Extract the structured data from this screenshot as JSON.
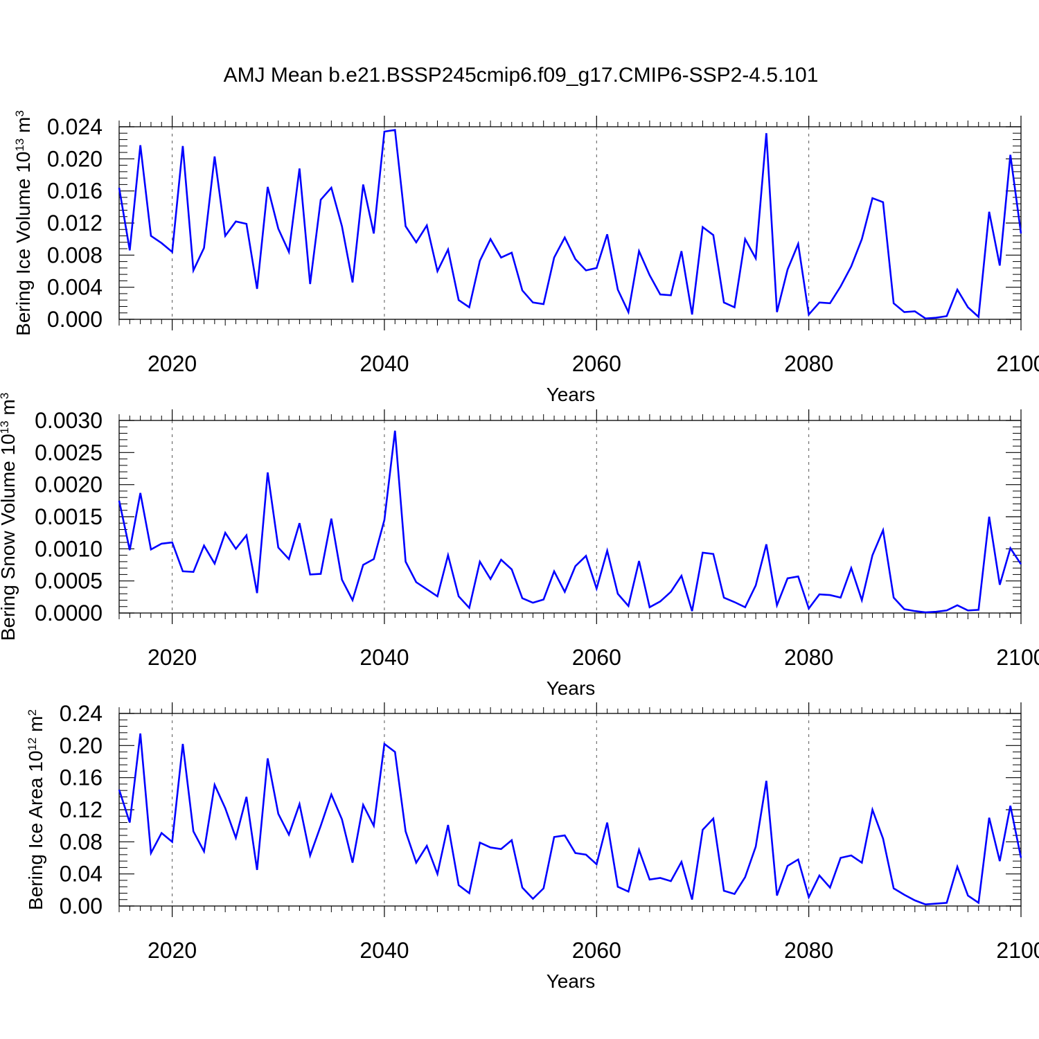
{
  "title": "AMJ Mean b.e21.BSSP245cmip6.f09_g17.CMIP6-SSP2-4.5.101",
  "chart_data": [
    {
      "type": "line",
      "xlabel": "Years",
      "ylabel": {
        "text": "Bering Ice Volume 10",
        "exponent": "13",
        "unit": " m",
        "unit_exponent": "3"
      },
      "xlim": [
        2015,
        2100
      ],
      "ylim": [
        0,
        0.024
      ],
      "x_ticks": [
        2020,
        2040,
        2060,
        2080,
        2100
      ],
      "x_tick_labels": [
        "2020",
        "2040",
        "2060",
        "2080",
        "2100"
      ],
      "y_ticks": [
        0,
        0.004,
        0.008,
        0.012,
        0.016,
        0.02,
        0.024
      ],
      "y_tick_labels": [
        "0.000",
        "0.004",
        "0.008",
        "0.012",
        "0.016",
        "0.020",
        "0.024"
      ],
      "series": [
        {
          "name": "ice volume",
          "color": "#0000ff",
          "x_start": 2015,
          "values": [
            0.0164,
            0.0086,
            0.0217,
            0.0104,
            0.0095,
            0.0084,
            0.0216,
            0.0061,
            0.0089,
            0.0203,
            0.0104,
            0.0122,
            0.0119,
            0.0038,
            0.0165,
            0.0113,
            0.0084,
            0.0188,
            0.0044,
            0.0149,
            0.0164,
            0.0116,
            0.0046,
            0.0168,
            0.0107,
            0.0234,
            0.0236,
            0.0116,
            0.0096,
            0.0117,
            0.006,
            0.0087,
            0.0024,
            0.0015,
            0.0073,
            0.01,
            0.0077,
            0.0083,
            0.0036,
            0.0021,
            0.0019,
            0.0077,
            0.0102,
            0.0075,
            0.0061,
            0.0064,
            0.0106,
            0.0037,
            0.0009,
            0.0085,
            0.0055,
            0.0031,
            0.003,
            0.0085,
            0.0006,
            0.0115,
            0.0105,
            0.0021,
            0.0015,
            0.01,
            0.0076,
            0.0232,
            0.0009,
            0.0062,
            0.0094,
            0.0006,
            0.0021,
            0.002,
            0.0041,
            0.0066,
            0.01,
            0.0151,
            0.0146,
            0.002,
            0.0009,
            0.001,
            0.0001,
            0.0002,
            0.0004,
            0.0037,
            0.0015,
            0.0003,
            0.0134,
            0.0067,
            0.0205,
            0.0107
          ]
        }
      ]
    },
    {
      "type": "line",
      "xlabel": "Years",
      "ylabel": {
        "text": "Bering Snow Volume 10",
        "exponent": "13",
        "unit": " m",
        "unit_exponent": "3"
      },
      "xlim": [
        2015,
        2100
      ],
      "ylim": [
        0,
        0.003
      ],
      "x_ticks": [
        2020,
        2040,
        2060,
        2080,
        2100
      ],
      "x_tick_labels": [
        "2020",
        "2040",
        "2060",
        "2080",
        "2100"
      ],
      "y_ticks": [
        0,
        0.0005,
        0.001,
        0.0015,
        0.002,
        0.0025,
        0.003
      ],
      "y_tick_labels": [
        "0.0000",
        "0.0005",
        "0.0010",
        "0.0015",
        "0.0020",
        "0.0025",
        "0.0030"
      ],
      "series": [
        {
          "name": "snow volume",
          "color": "#0000ff",
          "x_start": 2015,
          "values": [
            0.00175,
            0.00098,
            0.00187,
            0.00099,
            0.00108,
            0.0011,
            0.00065,
            0.00064,
            0.00105,
            0.00077,
            0.00125,
            0.001,
            0.00121,
            0.00031,
            0.00219,
            0.00102,
            0.00084,
            0.0014,
            0.0006,
            0.00061,
            0.00147,
            0.00052,
            0.0002,
            0.00075,
            0.00084,
            0.00145,
            0.00284,
            0.0008,
            0.00048,
            0.00037,
            0.00026,
            0.0009,
            0.00026,
            8e-05,
            0.0008,
            0.00053,
            0.00083,
            0.00068,
            0.00023,
            0.00016,
            0.00021,
            0.00065,
            0.00033,
            0.00073,
            0.00089,
            0.00038,
            0.00097,
            0.0003,
            0.00011,
            0.00081,
            9e-05,
            0.00018,
            0.00033,
            0.00058,
            3e-05,
            0.00094,
            0.00092,
            0.00024,
            0.00017,
            9e-05,
            0.00043,
            0.00107,
            0.00012,
            0.00054,
            0.00057,
            7e-05,
            0.00029,
            0.00028,
            0.00024,
            0.0007,
            0.0002,
            0.0009,
            0.00129,
            0.00024,
            6e-05,
            3e-05,
            1e-05,
            2e-05,
            4e-05,
            0.00012,
            4e-05,
            5e-05,
            0.0015,
            0.00044,
            0.00101,
            0.00076
          ]
        }
      ]
    },
    {
      "type": "line",
      "xlabel": "Years",
      "ylabel": {
        "text": "Bering Ice Area 10",
        "exponent": "12",
        "unit": " m",
        "unit_exponent": "2"
      },
      "xlim": [
        2015,
        2100
      ],
      "ylim": [
        0,
        0.24
      ],
      "x_ticks": [
        2020,
        2040,
        2060,
        2080,
        2100
      ],
      "x_tick_labels": [
        "2020",
        "2040",
        "2060",
        "2080",
        "2100"
      ],
      "y_ticks": [
        0,
        0.04,
        0.08,
        0.12,
        0.16,
        0.2,
        0.24
      ],
      "y_tick_labels": [
        "0.00",
        "0.04",
        "0.08",
        "0.12",
        "0.16",
        "0.20",
        "0.24"
      ],
      "series": [
        {
          "name": "ice area",
          "color": "#0000ff",
          "x_start": 2015,
          "values": [
            0.145,
            0.104,
            0.215,
            0.066,
            0.091,
            0.08,
            0.202,
            0.093,
            0.068,
            0.151,
            0.122,
            0.085,
            0.136,
            0.045,
            0.184,
            0.115,
            0.089,
            0.127,
            0.063,
            0.1,
            0.139,
            0.108,
            0.054,
            0.126,
            0.1,
            0.202,
            0.192,
            0.093,
            0.054,
            0.075,
            0.04,
            0.101,
            0.026,
            0.016,
            0.079,
            0.073,
            0.071,
            0.082,
            0.023,
            0.009,
            0.022,
            0.086,
            0.088,
            0.066,
            0.064,
            0.052,
            0.104,
            0.024,
            0.018,
            0.07,
            0.033,
            0.035,
            0.031,
            0.055,
            0.008,
            0.095,
            0.109,
            0.019,
            0.015,
            0.036,
            0.074,
            0.156,
            0.013,
            0.05,
            0.058,
            0.011,
            0.038,
            0.023,
            0.06,
            0.063,
            0.054,
            0.12,
            0.084,
            0.022,
            0.014,
            0.007,
            0.002,
            0.003,
            0.004,
            0.049,
            0.013,
            0.004,
            0.11,
            0.056,
            0.125,
            0.06
          ]
        }
      ]
    }
  ]
}
